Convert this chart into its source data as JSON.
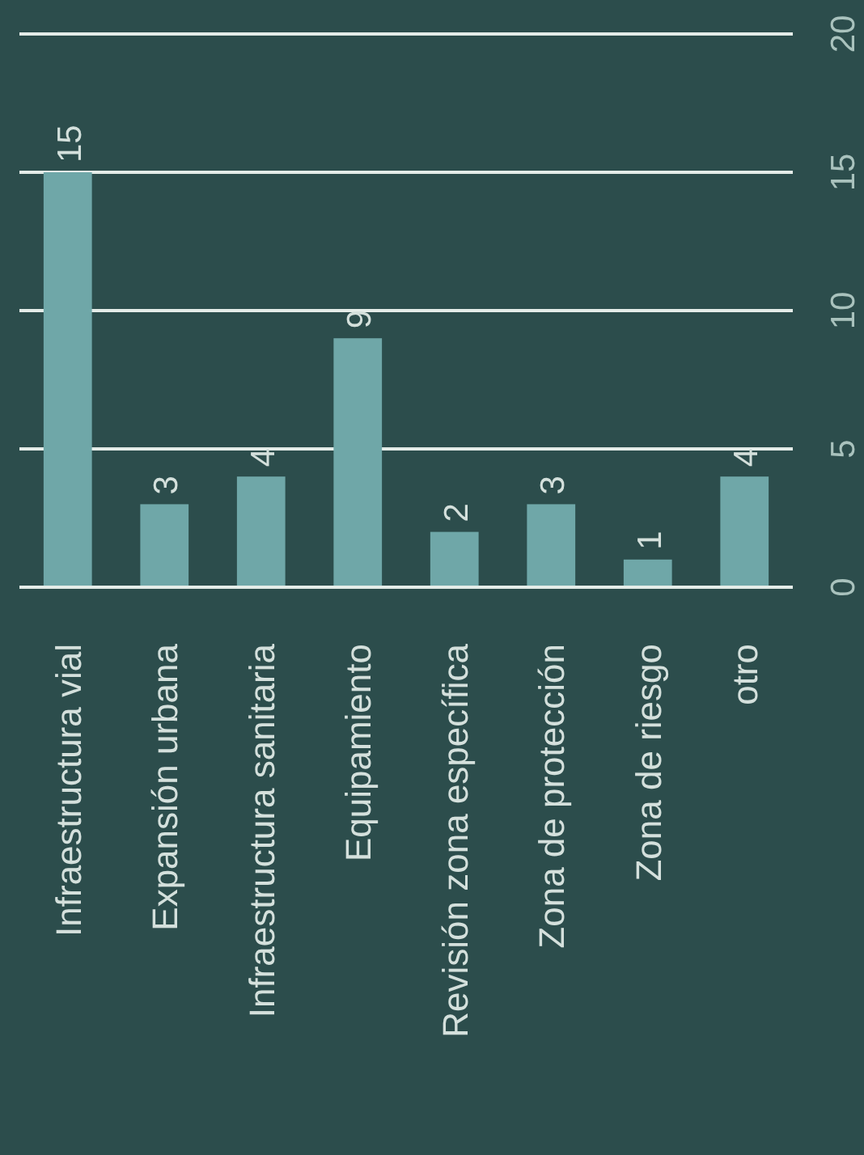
{
  "chart_data": {
    "type": "bar",
    "categories": [
      "Infraestructura vial",
      "Expansión urbana",
      "Infraestructura sanitaria",
      "Equipamiento",
      "Revisión zona específica",
      "Zona de protección",
      "Zona de riesgo",
      "otro"
    ],
    "values": [
      15,
      3,
      4,
      9,
      2,
      3,
      1,
      4
    ],
    "color": "#6fa7a8",
    "ylim": [
      0,
      20
    ],
    "yticks": [
      0,
      5,
      10,
      15,
      20
    ],
    "grid": "y",
    "data_labels": true
  }
}
